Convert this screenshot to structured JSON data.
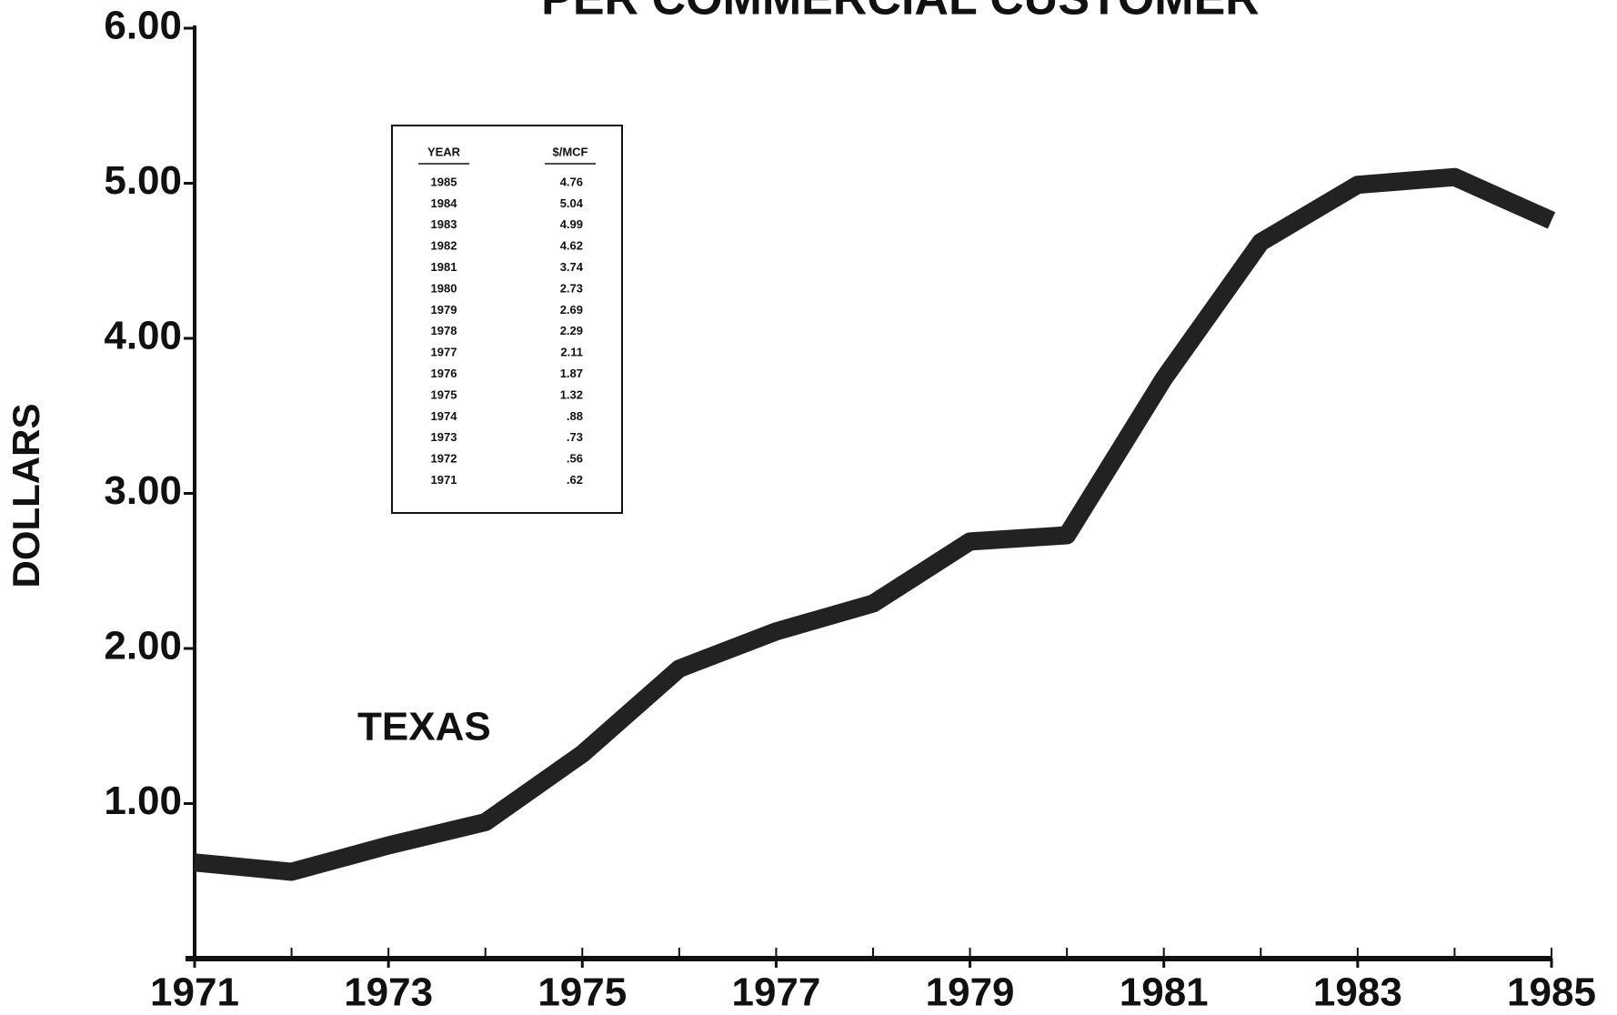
{
  "chart_data": {
    "type": "line",
    "title": "PER COMMERCIAL CUSTOMER",
    "ylabel": "DOLLARS",
    "annotation": "TEXAS",
    "x": [
      1971,
      1972,
      1973,
      1974,
      1975,
      1976,
      1977,
      1978,
      1979,
      1980,
      1981,
      1982,
      1983,
      1984,
      1985
    ],
    "series": [
      {
        "name": "TEXAS",
        "color": "#222222",
        "values": [
          0.62,
          0.56,
          0.73,
          0.88,
          1.32,
          1.87,
          2.11,
          2.29,
          2.69,
          2.73,
          3.74,
          4.62,
          4.99,
          5.04,
          4.76
        ]
      }
    ],
    "xlim": [
      1971,
      1985
    ],
    "xticks": [
      1971,
      1973,
      1975,
      1977,
      1979,
      1981,
      1983,
      1985
    ],
    "ylim": [
      0,
      6
    ],
    "yticks": [
      {
        "value": 1,
        "label": "1.00"
      },
      {
        "value": 2,
        "label": "2.00"
      },
      {
        "value": 3,
        "label": "3.00"
      },
      {
        "value": 4,
        "label": "4.00"
      },
      {
        "value": 5,
        "label": "5.00"
      },
      {
        "value": 6,
        "label": "6.00"
      }
    ],
    "table": {
      "header": [
        "YEAR",
        "$/MCF"
      ],
      "rows": [
        [
          "1985",
          "4.76"
        ],
        [
          "1984",
          "5.04"
        ],
        [
          "1983",
          "4.99"
        ],
        [
          "1982",
          "4.62"
        ],
        [
          "1981",
          "3.74"
        ],
        [
          "1980",
          "2.73"
        ],
        [
          "1979",
          "2.69"
        ],
        [
          "1978",
          "2.29"
        ],
        [
          "1977",
          "2.11"
        ],
        [
          "1976",
          "1.87"
        ],
        [
          "1975",
          "1.32"
        ],
        [
          "1974",
          ".88"
        ],
        [
          "1973",
          ".73"
        ],
        [
          "1972",
          ".56"
        ],
        [
          "1971",
          ".62"
        ]
      ]
    }
  }
}
